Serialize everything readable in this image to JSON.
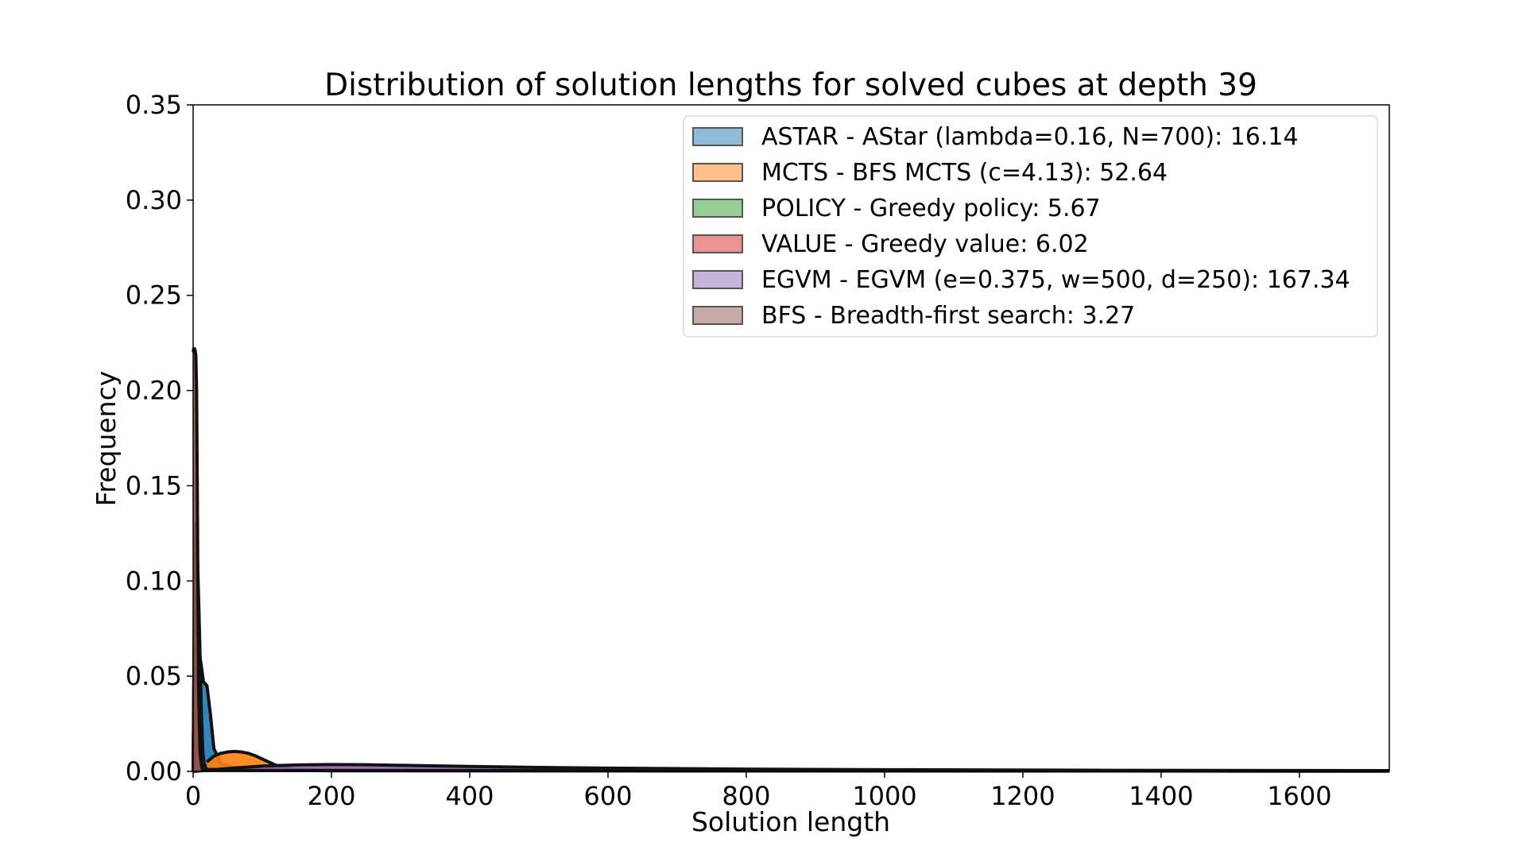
{
  "chart_data": {
    "type": "area",
    "title": "Distribution of solution lengths for solved cubes at depth 39",
    "xlabel": "Solution length",
    "ylabel": "Frequency",
    "xlim": [
      0,
      1730
    ],
    "ylim": [
      0,
      0.35
    ],
    "x_ticks": [
      "0",
      "200",
      "400",
      "600",
      "800",
      "1000",
      "1200",
      "1400",
      "1600"
    ],
    "y_ticks": [
      "0.00",
      "0.05",
      "0.10",
      "0.15",
      "0.20",
      "0.25",
      "0.30",
      "0.35"
    ],
    "grid": false,
    "legend_position": "upper right",
    "series": [
      {
        "name": "ASTAR - AStar (lambda=0.16, N=700): 16.14",
        "color": "#1f77b4",
        "x": [
          0,
          5,
          10,
          15,
          20,
          25,
          30,
          40,
          60,
          100,
          200,
          1730
        ],
        "values": [
          0.0,
          0.125,
          0.06,
          0.047,
          0.045,
          0.03,
          0.012,
          0.004,
          0.002,
          0.001,
          0.0005,
          0.0002
        ]
      },
      {
        "name": "MCTS - BFS MCTS (c=4.13): 52.64",
        "color": "#ff7f0e",
        "x": [
          20,
          30,
          40,
          50,
          60,
          70,
          80,
          90,
          100,
          110,
          120,
          140,
          160,
          200,
          1730
        ],
        "values": [
          0.005,
          0.008,
          0.0095,
          0.0102,
          0.0105,
          0.0102,
          0.0095,
          0.0082,
          0.0065,
          0.0048,
          0.0032,
          0.0015,
          0.0007,
          0.0003,
          0.0002
        ]
      },
      {
        "name": "POLICY - Greedy policy: 5.67",
        "color": "#2ca02c",
        "x": [
          0,
          2,
          4,
          6,
          8,
          10,
          12,
          14,
          1730
        ],
        "values": [
          0.0,
          0.09,
          0.12,
          0.1,
          0.06,
          0.02,
          0.004,
          0.001,
          0.0002
        ]
      },
      {
        "name": "VALUE - Greedy value: 6.02",
        "color": "#d62728",
        "x": [
          0,
          2,
          4,
          6,
          8,
          10,
          12,
          14,
          16,
          18,
          20,
          1730
        ],
        "values": [
          0.0,
          0.1,
          0.13,
          0.115,
          0.09,
          0.06,
          0.03,
          0.01,
          0.004,
          0.002,
          0.001,
          0.0002
        ]
      },
      {
        "name": "EGVM - EGVM (e=0.375, w=500, d=250): 167.34",
        "color": "#9467bd",
        "x": [
          0,
          50,
          100,
          150,
          200,
          250,
          300,
          400,
          500,
          600,
          800,
          1000,
          1300,
          1730
        ],
        "values": [
          0.0,
          0.0015,
          0.0028,
          0.0034,
          0.0036,
          0.0035,
          0.0032,
          0.0026,
          0.0021,
          0.0017,
          0.0012,
          0.0009,
          0.0006,
          0.0004
        ]
      },
      {
        "name": "BFS - Breadth-first search: 3.27",
        "color": "#8c564b",
        "x": [
          0,
          1,
          2,
          3,
          4,
          5,
          6,
          7,
          8,
          10,
          12,
          14,
          1730
        ],
        "values": [
          0.22,
          0.222,
          0.222,
          0.221,
          0.218,
          0.2,
          0.15,
          0.09,
          0.04,
          0.01,
          0.003,
          0.0005,
          0.0001
        ]
      }
    ]
  }
}
